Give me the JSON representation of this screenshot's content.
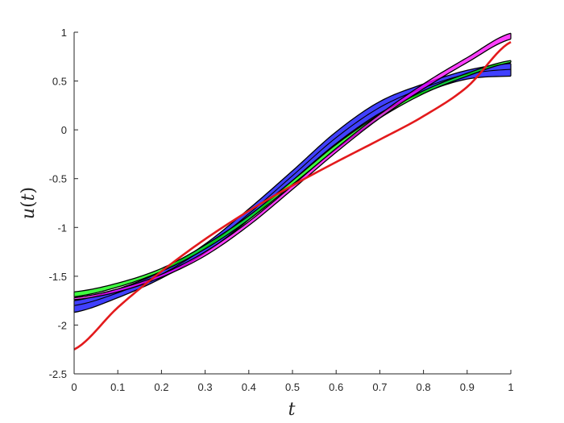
{
  "chart_data": {
    "type": "area",
    "title": "",
    "xlabel": "t",
    "ylabel": "u(t)",
    "xlim": [
      0,
      1
    ],
    "ylim": [
      -2.5,
      1
    ],
    "grid": false,
    "legend": "none",
    "x_ticks": [
      0,
      0.1,
      0.2,
      0.3,
      0.4,
      0.5,
      0.6,
      0.7,
      0.8,
      0.9,
      1
    ],
    "x_tick_labels": [
      "0",
      "0.1",
      "0.2",
      "0.3",
      "0.4",
      "0.5",
      "0.6",
      "0.7",
      "0.8",
      "0.9",
      "1"
    ],
    "y_ticks": [
      1,
      0.5,
      0,
      -0.5,
      -1,
      -1.5,
      -2,
      -2.5
    ],
    "y_tick_labels": [
      "1",
      "0.5",
      "0",
      "-0.5",
      "-1",
      "-1.5",
      "-2",
      "-2.5"
    ],
    "x": [
      0,
      0.1,
      0.2,
      0.3,
      0.4,
      0.5,
      0.6,
      0.7,
      0.8,
      0.9,
      1
    ],
    "bands": [
      {
        "color": "#0000ff",
        "lower": [
          -1.87,
          -1.72,
          -1.52,
          -1.26,
          -0.92,
          -0.52,
          -0.14,
          0.17,
          0.38,
          0.52,
          0.55
        ],
        "upper": [
          -1.75,
          -1.63,
          -1.45,
          -1.17,
          -0.81,
          -0.42,
          -0.02,
          0.29,
          0.47,
          0.61,
          0.68
        ],
        "edges": [
          -1.8,
          -1.67,
          -1.48,
          -1.21,
          -0.86,
          -0.47,
          -0.08,
          0.23,
          0.43,
          0.57,
          0.62
        ]
      },
      {
        "color": "#00ff00",
        "lower": [
          -1.71,
          -1.61,
          -1.45,
          -1.22,
          -0.92,
          -0.56,
          -0.2,
          0.12,
          0.37,
          0.55,
          0.69
        ],
        "upper": [
          -1.66,
          -1.57,
          -1.42,
          -1.18,
          -0.88,
          -0.52,
          -0.15,
          0.16,
          0.4,
          0.58,
          0.71
        ],
        "edges": []
      },
      {
        "color": "#ff00ff",
        "lower": [
          -1.74,
          -1.66,
          -1.51,
          -1.29,
          -0.98,
          -0.61,
          -0.23,
          0.12,
          0.42,
          0.69,
          0.93
        ],
        "upper": [
          -1.72,
          -1.63,
          -1.48,
          -1.25,
          -0.94,
          -0.57,
          -0.19,
          0.16,
          0.47,
          0.74,
          0.99
        ],
        "edges": []
      }
    ],
    "lines": [
      {
        "color": "#e31a1c",
        "values": [
          -2.25,
          -1.82,
          -1.45,
          -1.12,
          -0.83,
          -0.57,
          -0.33,
          -0.1,
          0.14,
          0.44,
          0.9
        ]
      }
    ]
  }
}
